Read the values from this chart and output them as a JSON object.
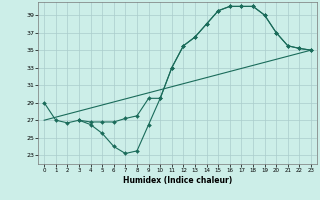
{
  "xlabel": "Humidex (Indice chaleur)",
  "xlim": [
    -0.5,
    23.5
  ],
  "ylim": [
    22,
    40.5
  ],
  "yticks": [
    23,
    25,
    27,
    29,
    31,
    33,
    35,
    37,
    39
  ],
  "xticks": [
    0,
    1,
    2,
    3,
    4,
    5,
    6,
    7,
    8,
    9,
    10,
    11,
    12,
    13,
    14,
    15,
    16,
    17,
    18,
    19,
    20,
    21,
    22,
    23
  ],
  "bg_color": "#cceee8",
  "grid_color": "#aacccc",
  "line_color": "#1a6b5a",
  "line1_x": [
    0,
    1,
    2,
    3,
    4,
    5,
    6,
    7,
    8,
    9,
    10,
    11,
    12,
    13,
    14,
    15,
    16,
    17,
    18,
    19,
    20,
    21,
    22,
    23
  ],
  "line1_y": [
    29,
    27,
    26.7,
    27,
    26.5,
    25.5,
    24,
    23.2,
    23.5,
    26.5,
    29.5,
    33,
    35.5,
    36.5,
    38,
    39.5,
    40,
    40,
    40,
    39,
    37,
    35.5,
    35.2,
    35
  ],
  "line2_x": [
    3,
    4,
    5,
    6,
    7,
    8,
    9,
    10,
    11,
    12,
    13,
    14,
    15,
    16,
    17,
    18,
    19,
    20,
    21,
    22,
    23
  ],
  "line2_y": [
    27,
    26.8,
    26.8,
    26.8,
    27.2,
    27.5,
    29.5,
    29.5,
    33,
    35.5,
    36.5,
    38,
    39.5,
    40,
    40,
    40,
    39,
    37,
    35.5,
    35.2,
    35
  ],
  "line3_x": [
    0,
    23
  ],
  "line3_y": [
    27,
    35
  ]
}
